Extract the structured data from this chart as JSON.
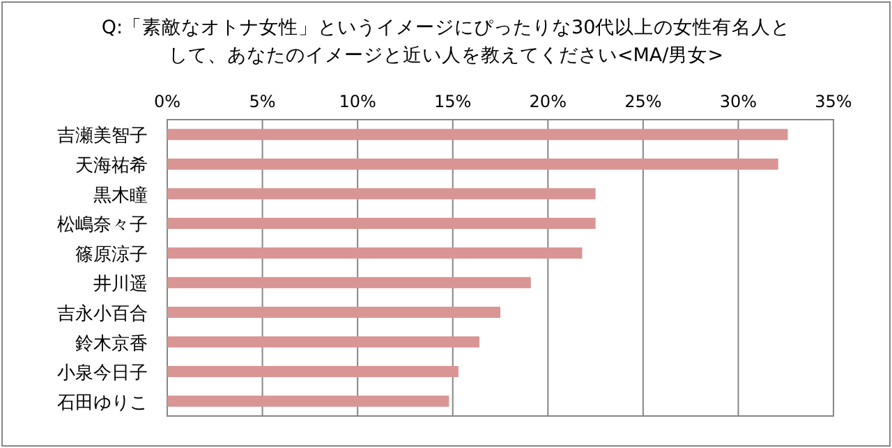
{
  "chart_data": {
    "type": "bar",
    "orientation": "horizontal",
    "title": "Q:「素敵なオトナ女性」というイメージにぴったりな30代以上の女性有名人として、あなたのイメージと近い人を教えてください<MA/男女>",
    "categories": [
      "吉瀬美智子",
      "天海祐希",
      "黒木瞳",
      "松嶋奈々子",
      "篠原涼子",
      "井川遥",
      "吉永小百合",
      "鈴木京香",
      "小泉今日子",
      "石田ゆりこ"
    ],
    "values": [
      32.6,
      32.1,
      22.5,
      22.5,
      21.8,
      19.1,
      17.5,
      16.4,
      15.3,
      14.8
    ],
    "color": "#d99594",
    "xlim": [
      0,
      35
    ],
    "xticks": [
      {
        "value": 0,
        "label": "0%"
      },
      {
        "value": 5,
        "label": "5%"
      },
      {
        "value": 10,
        "label": "10%"
      },
      {
        "value": 15,
        "label": "15%"
      },
      {
        "value": 20,
        "label": "20%"
      },
      {
        "value": 25,
        "label": "25%"
      },
      {
        "value": 30,
        "label": "30%"
      },
      {
        "value": 35,
        "label": "35%"
      }
    ],
    "grid": "x"
  }
}
